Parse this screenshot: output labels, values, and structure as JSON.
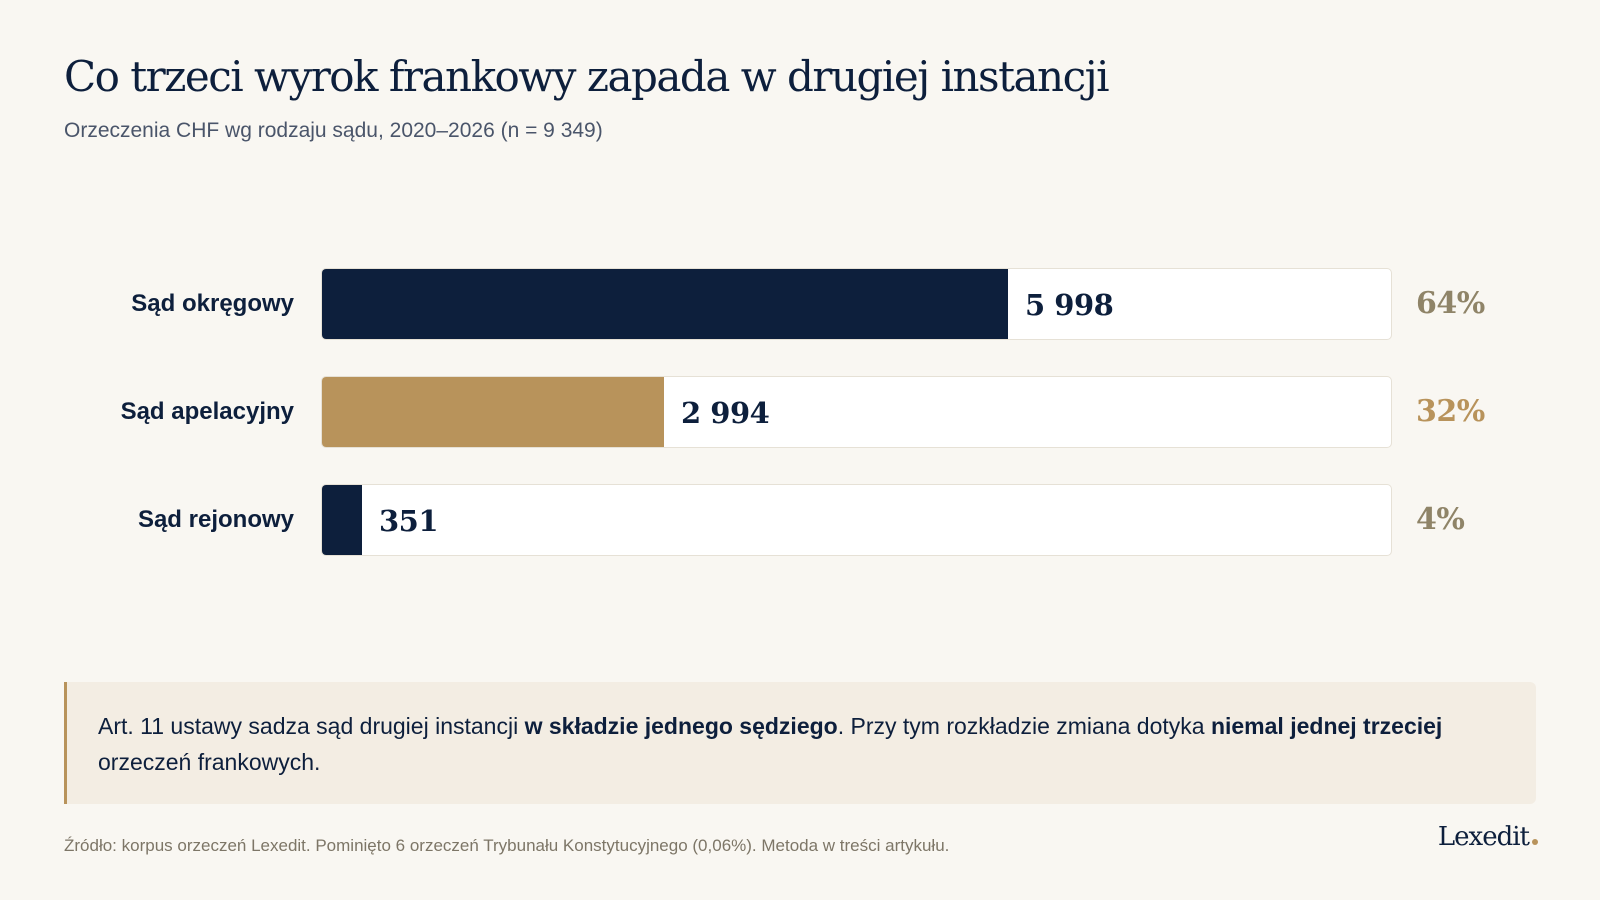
{
  "title": "Co trzeci wyrok frankowy zapada w drugiej instancji",
  "subtitle": "Orzeczenia CHF wg rodzaju sądu, 2020–2026 (n = 9 349)",
  "chart_data": {
    "type": "bar",
    "orientation": "horizontal",
    "title": "Co trzeci wyrok frankowy zapada w drugiej instancji",
    "subtitle": "Orzeczenia CHF wg rodzaju sądu, 2020–2026 (n = 9 349)",
    "categories": [
      "Sąd okręgowy",
      "Sąd apelacyjny",
      "Sąd rejonowy"
    ],
    "values": [
      5998,
      2994,
      351
    ],
    "value_labels": [
      "5 998",
      "2 994",
      "351"
    ],
    "percent_labels": [
      "64%",
      "32%",
      "4%"
    ],
    "bar_colors": [
      "#0d1f3c",
      "#b8935b",
      "#0d1f3c"
    ],
    "percent_colors": [
      "#8f8468",
      "#b8935b",
      "#8f8468"
    ],
    "xlim": [
      0,
      9349
    ],
    "grid": false,
    "legend": "none"
  },
  "note": {
    "text_1": "Art. 11 ustawy sadza sąd drugiej instancji ",
    "bold_1": "w składzie jednego sędziego",
    "text_2": ". Przy tym rozkładzie zmiana dotyka ",
    "bold_2": "niemal jednej trzeciej",
    "text_3": " orzeczeń frankowych."
  },
  "source": "Źródło: korpus orzeczeń Lexedit. Pominięto 6 orzeczeń Trybunału Konstytucyjnego (0,06%). Metoda w treści artykułu.",
  "logo_text": "Lexedit",
  "colors": {
    "navy": "#0d1f3c",
    "gold": "#b8935b",
    "background": "#f9f7f2",
    "note_background": "#f3ede3"
  }
}
